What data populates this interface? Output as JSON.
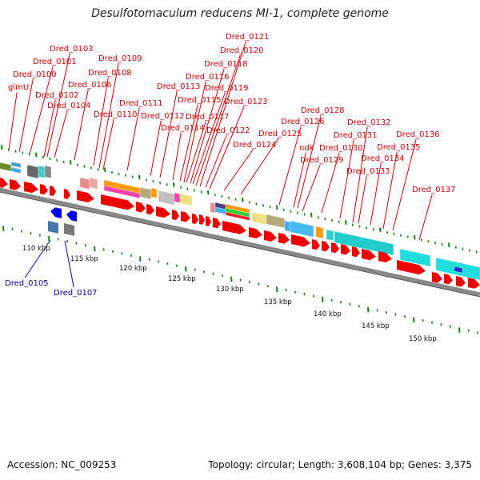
{
  "title": "Desulfotomaculum reducens MI-1, complete genome",
  "footer": {
    "accession": "Accession: NC_009253",
    "summary": "Topology: circular; Length: 3,608,104 bp; Genes: 3,375"
  },
  "colors": {
    "forward_label": "#dd0000",
    "reverse_label": "#0000bb",
    "forward_gene": "#ee0000",
    "reverse_gene": "#0000ee",
    "backbone": "#888888",
    "tick": "#118811"
  },
  "forward_labels": [
    "glmU",
    "Dred_0100",
    "Dred_0101",
    "Dred_0102",
    "Dred_0103",
    "Dred_0104",
    "Dred_0106",
    "Dred_0108",
    "Dred_0109",
    "Dred_0110",
    "Dred_0111",
    "Dred_0112",
    "Dred_0113",
    "Dred_0114",
    "Dred_0115",
    "Dred_0116",
    "Dred_0117",
    "Dred_0118",
    "Dred_0119",
    "Dred_0120",
    "Dred_0121",
    "Dred_0122",
    "Dred_0123",
    "Dred_0124",
    "Dred_0125",
    "Dred_0126",
    "ndk",
    "Dred_0128",
    "Dred_0129",
    "Dred_0130",
    "Dred_0131",
    "Dred_0132",
    "Dred_0133",
    "Dred_0134",
    "Dred_0135",
    "Dred_0136",
    "Dred_0137"
  ],
  "reverse_labels": [
    "Dred_0105",
    "Dred_0107"
  ],
  "ticks": [
    "110 kbp",
    "115 kbp",
    "120 kbp",
    "125 kbp",
    "130 kbp",
    "135 kbp",
    "140 kbp",
    "145 kbp",
    "150 kbp"
  ]
}
